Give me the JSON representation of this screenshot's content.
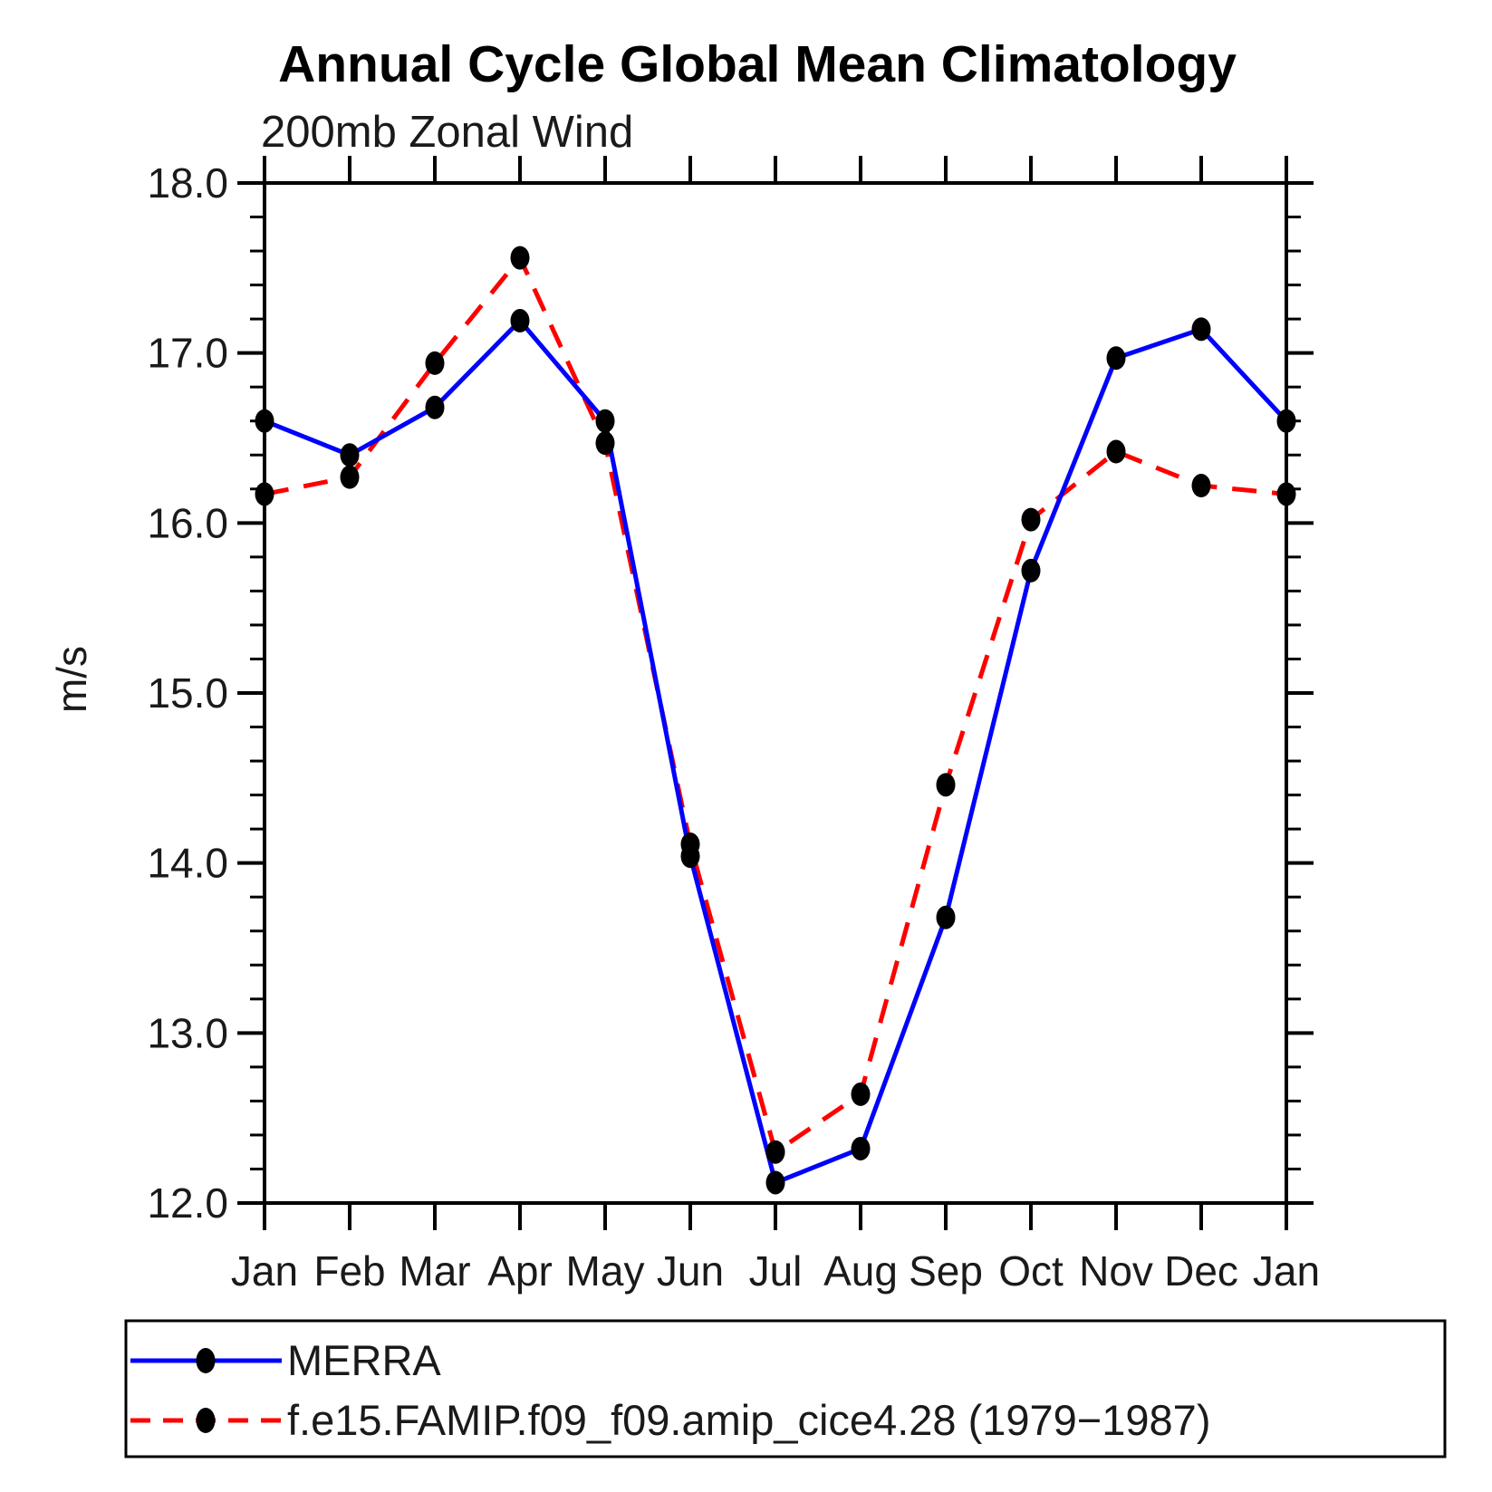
{
  "title": "Annual Cycle Global Mean Climatology",
  "chart_data": {
    "type": "line",
    "title": "Annual Cycle Global Mean Climatology",
    "subtitle": "200mb Zonal Wind",
    "ylabel": "m/s",
    "xlabel": "",
    "ylim": [
      12.0,
      18.0
    ],
    "ytick_major_step": 1.0,
    "ytick_minor_step": 0.2,
    "ytick_labels": [
      "12.0",
      "13.0",
      "14.0",
      "15.0",
      "16.0",
      "17.0",
      "18.0"
    ],
    "categories": [
      "Jan",
      "Feb",
      "Mar",
      "Apr",
      "May",
      "Jun",
      "Jul",
      "Aug",
      "Sep",
      "Oct",
      "Nov",
      "Dec",
      "Jan"
    ],
    "grid": false,
    "legend_position": "bottom-left-box",
    "marker": "filled-circle",
    "marker_color": "#000000",
    "series": [
      {
        "name": "MERRA",
        "color": "#0000ff",
        "line_style": "solid",
        "values": [
          16.6,
          16.4,
          16.68,
          17.19,
          16.6,
          14.04,
          12.12,
          12.32,
          13.68,
          15.72,
          16.97,
          17.14,
          16.6
        ]
      },
      {
        "name": "f.e15.FAMIP.f09_f09.amip_cice4.28 (1979−1987)",
        "color": "#ff0000",
        "line_style": "dashed",
        "values": [
          16.17,
          16.27,
          16.94,
          17.56,
          16.47,
          14.11,
          12.3,
          12.64,
          14.46,
          16.02,
          16.42,
          16.22,
          16.17
        ]
      }
    ]
  }
}
